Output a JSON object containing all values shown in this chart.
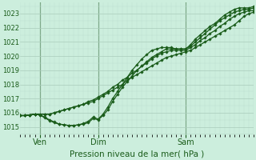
{
  "title": "",
  "xlabel": "Pression niveau de la mer( hPa )",
  "ylabel": "",
  "bg_color": "#cceedd",
  "grid_color_major": "#aaccbb",
  "grid_color_minor": "#bbddd0",
  "line_color": "#1a5c1a",
  "axes_color": "#1a5c1a",
  "xlim": [
    0,
    96
  ],
  "ylim": [
    1014.5,
    1023.8
  ],
  "yticks": [
    1015,
    1016,
    1017,
    1018,
    1019,
    1020,
    1021,
    1022,
    1023
  ],
  "xtick_positions": [
    8,
    32,
    68
  ],
  "xtick_labels": [
    "Ven",
    "Dim",
    "Sam"
  ],
  "vlines": [
    8,
    32,
    68
  ],
  "lines": [
    [
      0,
      1015.8,
      2,
      1015.8,
      4,
      1015.85,
      6,
      1015.9,
      8,
      1015.85,
      10,
      1015.7,
      12,
      1015.5,
      14,
      1015.35,
      16,
      1015.2,
      18,
      1015.15,
      20,
      1015.1,
      22,
      1015.1,
      24,
      1015.15,
      26,
      1015.2,
      28,
      1015.3,
      30,
      1015.6,
      32,
      1015.5,
      34,
      1015.8,
      36,
      1016.2,
      38,
      1016.8,
      40,
      1017.3,
      42,
      1017.8,
      44,
      1018.2,
      46,
      1018.6,
      48,
      1019.0,
      50,
      1019.3,
      52,
      1019.6,
      54,
      1019.9,
      56,
      1020.1,
      58,
      1020.3,
      60,
      1020.5,
      62,
      1020.5,
      64,
      1020.5,
      66,
      1020.5,
      68,
      1020.5,
      70,
      1020.7,
      72,
      1021.0,
      74,
      1021.3,
      76,
      1021.6,
      78,
      1021.9,
      80,
      1022.2,
      82,
      1022.5,
      84,
      1022.7,
      86,
      1022.9,
      88,
      1023.1,
      90,
      1023.2,
      92,
      1023.3,
      94,
      1023.3,
      96,
      1023.4
    ],
    [
      0,
      1015.8,
      2,
      1015.8,
      4,
      1015.85,
      6,
      1015.9,
      8,
      1015.9,
      10,
      1015.9,
      12,
      1015.9,
      14,
      1016.0,
      16,
      1016.1,
      18,
      1016.2,
      20,
      1016.3,
      22,
      1016.4,
      24,
      1016.5,
      26,
      1016.6,
      28,
      1016.7,
      30,
      1016.8,
      32,
      1017.0,
      34,
      1017.2,
      36,
      1017.4,
      38,
      1017.6,
      40,
      1017.8,
      42,
      1018.0,
      44,
      1018.3,
      46,
      1018.5,
      48,
      1018.7,
      50,
      1018.9,
      52,
      1019.1,
      54,
      1019.3,
      56,
      1019.5,
      58,
      1019.7,
      60,
      1019.9,
      62,
      1020.0,
      64,
      1020.1,
      66,
      1020.2,
      68,
      1020.3,
      70,
      1020.4,
      72,
      1020.6,
      74,
      1020.8,
      76,
      1021.0,
      78,
      1021.2,
      80,
      1021.4,
      82,
      1021.6,
      84,
      1021.8,
      86,
      1022.0,
      88,
      1022.2,
      90,
      1022.5,
      92,
      1022.8,
      94,
      1023.0,
      96,
      1023.1
    ],
    [
      0,
      1015.8,
      2,
      1015.8,
      4,
      1015.85,
      6,
      1015.9,
      8,
      1015.85,
      10,
      1015.65,
      12,
      1015.45,
      14,
      1015.3,
      16,
      1015.2,
      18,
      1015.15,
      20,
      1015.1,
      22,
      1015.1,
      24,
      1015.15,
      26,
      1015.25,
      28,
      1015.4,
      30,
      1015.7,
      32,
      1015.55,
      34,
      1015.9,
      36,
      1016.4,
      38,
      1017.0,
      40,
      1017.5,
      42,
      1018.0,
      44,
      1018.5,
      46,
      1019.0,
      48,
      1019.4,
      50,
      1019.8,
      52,
      1020.1,
      54,
      1020.4,
      56,
      1020.5,
      58,
      1020.6,
      60,
      1020.6,
      62,
      1020.6,
      64,
      1020.5,
      66,
      1020.5,
      68,
      1020.5,
      70,
      1020.8,
      72,
      1021.2,
      74,
      1021.5,
      76,
      1021.8,
      78,
      1022.1,
      80,
      1022.3,
      82,
      1022.6,
      84,
      1022.9,
      86,
      1023.1,
      88,
      1023.3,
      90,
      1023.4,
      92,
      1023.4,
      94,
      1023.4,
      96,
      1023.5
    ],
    [
      0,
      1015.8,
      2,
      1015.8,
      4,
      1015.85,
      6,
      1015.9,
      8,
      1015.9,
      10,
      1015.9,
      12,
      1015.9,
      14,
      1016.0,
      16,
      1016.1,
      18,
      1016.2,
      20,
      1016.3,
      22,
      1016.4,
      24,
      1016.5,
      26,
      1016.6,
      28,
      1016.8,
      30,
      1016.9,
      32,
      1017.1,
      34,
      1017.3,
      36,
      1017.5,
      38,
      1017.8,
      40,
      1018.0,
      42,
      1018.3,
      44,
      1018.5,
      46,
      1018.8,
      48,
      1019.0,
      50,
      1019.3,
      52,
      1019.5,
      54,
      1019.8,
      56,
      1020.0,
      58,
      1020.2,
      60,
      1020.3,
      62,
      1020.4,
      64,
      1020.4,
      66,
      1020.4,
      68,
      1020.4,
      70,
      1020.6,
      72,
      1020.8,
      74,
      1021.1,
      76,
      1021.3,
      78,
      1021.6,
      80,
      1021.8,
      82,
      1022.1,
      84,
      1022.3,
      86,
      1022.6,
      88,
      1022.8,
      90,
      1023.0,
      92,
      1023.1,
      94,
      1023.2,
      96,
      1023.2
    ]
  ]
}
